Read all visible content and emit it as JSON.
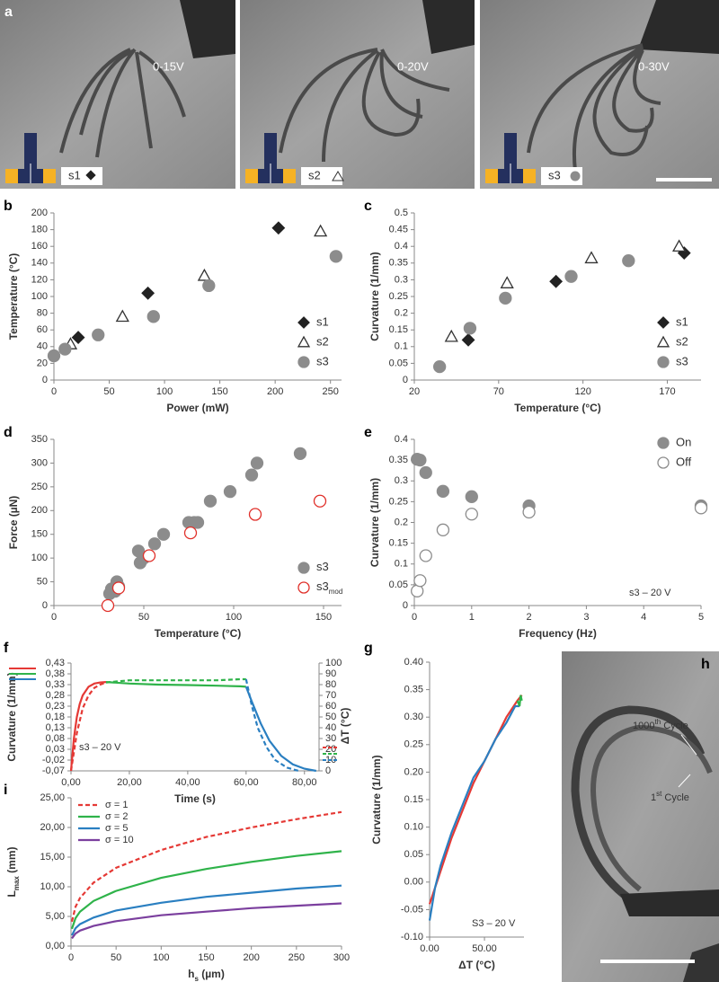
{
  "panel_a": {
    "label": "a",
    "photos": [
      {
        "voltage": "0-15V",
        "sample": "s1"
      },
      {
        "voltage": "0-20V",
        "sample": "s2"
      },
      {
        "voltage": "0-30V",
        "sample": "s3"
      }
    ]
  },
  "panel_h": {
    "label": "h",
    "annotations": [
      [
        {
          "text": "1000"
        },
        {
          "sup": "th"
        },
        {
          "text": " Cycle"
        }
      ],
      [
        {
          "text": "1"
        },
        {
          "sup": "st"
        },
        {
          "text": " Cycle"
        }
      ]
    ]
  },
  "chart_data": [
    {
      "type": "scatter",
      "panel": "b",
      "x_label": "Power (mW)",
      "y_label": "Temperature (°C)",
      "xlim": [
        0,
        260
      ],
      "xticks": [
        0,
        50,
        100,
        150,
        200,
        250
      ],
      "ylim": [
        0,
        200
      ],
      "yticks": [
        0,
        20,
        40,
        60,
        80,
        100,
        120,
        140,
        160,
        180,
        200
      ],
      "legend": "lower right",
      "series": [
        {
          "name": "s1",
          "marker": "diamond",
          "color": "#222222",
          "fill": "#222222",
          "x": [
            22,
            85,
            203
          ],
          "values": [
            51,
            104,
            182
          ]
        },
        {
          "name": "s2",
          "marker": "triangle",
          "color": "#333333",
          "fill": "#ffffff",
          "x": [
            15,
            62,
            136,
            241
          ],
          "values": [
            43,
            76,
            125,
            178
          ]
        },
        {
          "name": "s3",
          "marker": "circle",
          "color": "#8c8c8c",
          "fill": "#8c8c8c",
          "x": [
            0,
            10,
            40,
            90,
            140,
            255
          ],
          "values": [
            29,
            37,
            54,
            76,
            113,
            148
          ]
        }
      ]
    },
    {
      "type": "scatter",
      "panel": "c",
      "x_label": "Temperature (°C)",
      "y_label": "Curvature (1/mm)",
      "xlim": [
        20,
        190
      ],
      "xticks": [
        20,
        70,
        120,
        170
      ],
      "ylim": [
        0,
        0.5
      ],
      "yticks": [
        0,
        0.05,
        0.1,
        0.15,
        0.2,
        0.25,
        0.3,
        0.35,
        0.4,
        0.45,
        0.5
      ],
      "legend": "lower right",
      "series": [
        {
          "name": "s1",
          "marker": "diamond",
          "color": "#222222",
          "fill": "#222222",
          "x": [
            52,
            104,
            180
          ],
          "values": [
            0.12,
            0.295,
            0.38
          ]
        },
        {
          "name": "s2",
          "marker": "triangle",
          "color": "#333333",
          "fill": "#ffffff",
          "x": [
            42,
            75,
            125,
            177
          ],
          "values": [
            0.13,
            0.29,
            0.365,
            0.4
          ]
        },
        {
          "name": "s3",
          "marker": "circle",
          "color": "#8c8c8c",
          "fill": "#8c8c8c",
          "x": [
            35,
            53,
            74,
            113,
            147
          ],
          "values": [
            0.04,
            0.155,
            0.245,
            0.31,
            0.357
          ]
        }
      ]
    },
    {
      "type": "scatter",
      "panel": "d",
      "x_label": "Temperature (°C)",
      "y_label": "Force (µN)",
      "xlim": [
        0,
        160
      ],
      "xticks": [
        0,
        50,
        100,
        150
      ],
      "ylim": [
        0,
        350
      ],
      "yticks": [
        0,
        50,
        100,
        150,
        200,
        250,
        300,
        350
      ],
      "legend": "lower right",
      "series": [
        {
          "name": [
            {
              "text": "s3"
            }
          ],
          "marker": "circle",
          "color": "#8c8c8c",
          "fill": "#8c8c8c",
          "x": [
            31,
            32,
            34,
            35,
            36,
            47,
            48,
            50,
            56,
            61,
            75,
            78,
            80,
            87,
            98,
            110,
            113,
            137
          ],
          "values": [
            25,
            35,
            30,
            50,
            40,
            115,
            90,
            100,
            130,
            150,
            175,
            175,
            175,
            220,
            240,
            275,
            300,
            320
          ]
        },
        {
          "name": [
            {
              "text": "s3"
            },
            {
              "sub": "mod"
            }
          ],
          "marker": "circle",
          "color": "#e0302a",
          "fill": "#ffffff",
          "x": [
            30,
            36,
            53,
            76,
            112,
            148
          ],
          "values": [
            0,
            37,
            105,
            153,
            192,
            220
          ]
        }
      ]
    },
    {
      "type": "scatter",
      "panel": "e",
      "x_label": "Frequency (Hz)",
      "y_label": "Curvature (1/mm)",
      "annotation": "s3 – 20 V",
      "xlim": [
        0,
        5
      ],
      "xticks": [
        0,
        1,
        2,
        3,
        4,
        5
      ],
      "ylim": [
        0,
        0.4
      ],
      "yticks": [
        0,
        0.05,
        0.1,
        0.15,
        0.2,
        0.25,
        0.3,
        0.35,
        0.4
      ],
      "legend": "upper right",
      "series": [
        {
          "name": "On",
          "marker": "circle",
          "color": "#8c8c8c",
          "fill": "#8c8c8c",
          "x": [
            0.05,
            0.1,
            0.2,
            0.5,
            1,
            2,
            5
          ],
          "values": [
            0.352,
            0.35,
            0.32,
            0.275,
            0.262,
            0.24,
            0.24
          ]
        },
        {
          "name": "Off",
          "marker": "circle",
          "color": "#8c8c8c",
          "fill": "#ffffff",
          "x": [
            0.05,
            0.1,
            0.2,
            0.5,
            1,
            2,
            5
          ],
          "values": [
            0.035,
            0.06,
            0.12,
            0.182,
            0.22,
            0.225,
            0.235
          ]
        }
      ]
    },
    {
      "type": "line",
      "panel": "f",
      "x_label": "Time (s)",
      "y_label": "Curvature (1/mm)",
      "y2_label": "ΔT (°C)",
      "annotation": "s3 – 20 V",
      "legend": "upper left",
      "xlim": [
        0,
        85
      ],
      "xticks": [
        {
          "value": 0,
          "label": "0,00"
        },
        {
          "value": 20,
          "label": "20,00"
        },
        {
          "value": 40,
          "label": "40,00"
        },
        {
          "value": 60,
          "label": "60,00"
        },
        {
          "value": 80,
          "label": "80,00"
        }
      ],
      "ylim": [
        -0.07,
        0.43
      ],
      "yticks": [
        {
          "value": -0.07,
          "label": "-0,07"
        },
        {
          "value": -0.02,
          "label": "-0,02"
        },
        {
          "value": 0.03,
          "label": "0,03"
        },
        {
          "value": 0.08,
          "label": "0,08"
        },
        {
          "value": 0.13,
          "label": "0,13"
        },
        {
          "value": 0.18,
          "label": "0,18"
        },
        {
          "value": 0.23,
          "label": "0,23"
        },
        {
          "value": 0.28,
          "label": "0,28"
        },
        {
          "value": 0.33,
          "label": "0,33"
        },
        {
          "value": 0.38,
          "label": "0,38"
        },
        {
          "value": 0.43,
          "label": "0,43"
        }
      ],
      "y2lim": [
        0,
        100
      ],
      "y2ticks": [
        0,
        10,
        20,
        30,
        40,
        50,
        60,
        70,
        80,
        90,
        100
      ],
      "series": [
        {
          "color": "#e53935",
          "dash": false,
          "x": [
            0,
            1,
            2,
            3,
            4,
            6,
            8,
            10,
            12
          ],
          "values": [
            -0.07,
            0.08,
            0.18,
            0.24,
            0.28,
            0.32,
            0.335,
            0.34,
            0.342
          ]
        },
        {
          "color": "#2fb34a",
          "dash": false,
          "x": [
            12,
            20,
            30,
            40,
            50,
            58,
            60
          ],
          "values": [
            0.342,
            0.335,
            0.33,
            0.328,
            0.325,
            0.322,
            0.32
          ]
        },
        {
          "color": "#2a7fc1",
          "dash": false,
          "x": [
            60,
            62,
            65,
            68,
            72,
            76,
            80,
            84
          ],
          "values": [
            0.32,
            0.25,
            0.15,
            0.07,
            0,
            -0.04,
            -0.06,
            -0.07
          ]
        },
        {
          "color": "#e53935",
          "dash": true,
          "axis": "y2",
          "x": [
            0,
            2,
            4,
            6,
            8,
            10,
            12
          ],
          "values": [
            0,
            35,
            58,
            70,
            77,
            80,
            82
          ]
        },
        {
          "color": "#2fb34a",
          "dash": true,
          "axis": "y2",
          "x": [
            12,
            20,
            30,
            40,
            50,
            58,
            60
          ],
          "values": [
            82,
            84,
            84,
            84,
            84,
            85,
            85
          ]
        },
        {
          "color": "#2a7fc1",
          "dash": true,
          "axis": "y2",
          "x": [
            60,
            62,
            64,
            67,
            70,
            74,
            78
          ],
          "values": [
            85,
            60,
            40,
            22,
            10,
            3,
            0
          ]
        }
      ]
    },
    {
      "type": "line",
      "panel": "g",
      "x_label": "ΔT (°C)",
      "y_label": "Curvature (1/mm)",
      "annotation": "S3 – 20 V",
      "xlim": [
        0,
        86
      ],
      "xticks": [
        {
          "value": 0,
          "label": "0.00"
        },
        {
          "value": 50,
          "label": "50.00"
        }
      ],
      "ylim": [
        -0.1,
        0.4
      ],
      "yticks": [
        {
          "value": -0.1,
          "label": "-0.10"
        },
        -0.05,
        {
          "value": 0,
          "label": "0.00"
        },
        0.05,
        {
          "value": 0.1,
          "label": "0.10"
        },
        0.15,
        {
          "value": 0.2,
          "label": "0.20"
        },
        0.25,
        {
          "value": 0.3,
          "label": "0.30"
        },
        0.35,
        {
          "value": 0.4,
          "label": "0.40"
        }
      ],
      "series": [
        {
          "color": "#e53935",
          "dash": false,
          "x": [
            0,
            10,
            20,
            30,
            40,
            50,
            60,
            70,
            80,
            84
          ],
          "values": [
            -0.04,
            0.02,
            0.08,
            0.13,
            0.18,
            0.22,
            0.26,
            0.3,
            0.33,
            0.34
          ]
        },
        {
          "color": "#2a7fc1",
          "dash": false,
          "x": [
            0,
            5,
            10,
            20,
            30,
            40,
            50,
            60,
            70,
            78,
            82
          ],
          "values": [
            -0.07,
            -0.01,
            0.03,
            0.09,
            0.14,
            0.19,
            0.22,
            0.26,
            0.29,
            0.32,
            0.32
          ]
        },
        {
          "color": "#2fb34a",
          "dash": false,
          "x": [
            80,
            82,
            83,
            84
          ],
          "values": [
            0.33,
            0.32,
            0.34,
            0.33
          ]
        }
      ]
    },
    {
      "type": "line",
      "panel": "i",
      "x_label": [
        {
          "text": "h"
        },
        {
          "sub": "s"
        },
        {
          "text": " (µm)"
        }
      ],
      "y_label": [
        {
          "text": "L"
        },
        {
          "sub": "max"
        },
        {
          "text": " (mm)"
        }
      ],
      "legend": "upper left",
      "xlim": [
        0,
        300
      ],
      "xticks": [
        0,
        50,
        100,
        150,
        200,
        250,
        300
      ],
      "ylim": [
        0,
        25
      ],
      "yticks": [
        {
          "value": 0,
          "label": "0,00"
        },
        {
          "value": 5,
          "label": "5,00"
        },
        {
          "value": 10,
          "label": "10,00"
        },
        {
          "value": 15,
          "label": "15,00"
        },
        {
          "value": 20,
          "label": "20,00"
        },
        {
          "value": 25,
          "label": "25,00"
        }
      ],
      "x": [
        1,
        5,
        10,
        25,
        50,
        100,
        150,
        200,
        250,
        300
      ],
      "series": [
        {
          "name": "σ = 1",
          "color": "#e53935",
          "dash": true,
          "values": [
            4.1,
            6.6,
            8.1,
            10.7,
            13.2,
            16.2,
            18.4,
            20.0,
            21.4,
            22.6
          ]
        },
        {
          "name": "σ = 2",
          "color": "#2fb34a",
          "dash": false,
          "values": [
            2.9,
            4.7,
            5.8,
            7.6,
            9.3,
            11.5,
            13.0,
            14.2,
            15.2,
            16.0
          ]
        },
        {
          "name": "σ = 5",
          "color": "#2a7fc1",
          "dash": false,
          "values": [
            1.8,
            3.0,
            3.7,
            4.8,
            6.0,
            7.3,
            8.3,
            9.0,
            9.7,
            10.2
          ]
        },
        {
          "name": "σ = 10",
          "color": "#7b3f9e",
          "dash": false,
          "values": [
            1.3,
            2.1,
            2.6,
            3.4,
            4.2,
            5.2,
            5.8,
            6.4,
            6.8,
            7.2
          ]
        }
      ]
    }
  ]
}
